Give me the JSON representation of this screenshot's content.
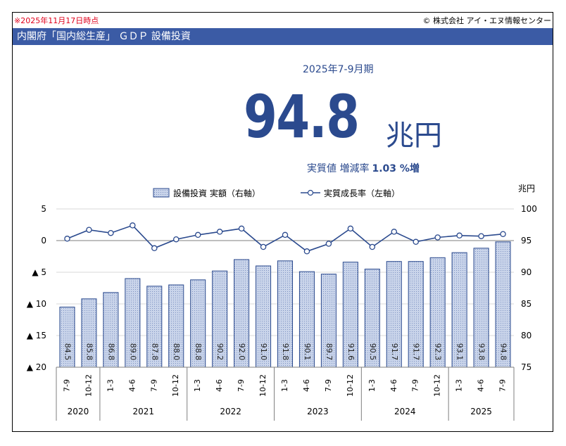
{
  "header": {
    "as_of": "※2025年11月17日時点",
    "copyright": "© 株式会社 アイ・エヌ情報センター",
    "title": "内閣府「国内総生産」 ＧＤＰ 設備投資"
  },
  "headline": {
    "period": "2025年7-9月期",
    "value": "94.8",
    "unit": "兆円",
    "growth_label": "実質値 増減率",
    "growth_value": "1.03 %増"
  },
  "colors": {
    "banner": "#3b5ba5",
    "text_blue": "#2b4a8e",
    "bar_fill": "#b8c6e0",
    "bar_stroke": "#2b4a8e",
    "line": "#2b4a8e",
    "as_of_red": "#e0001b"
  },
  "chart_data": {
    "type": "bar",
    "legend": {
      "bar": "設備投資 実額（右軸）",
      "line": "実質成長率（左軸）",
      "position": "top"
    },
    "right_axis_unit": "兆円",
    "categories": [
      "7-9",
      "10-12",
      "1-3",
      "4-6",
      "7-9",
      "10-12",
      "1-3",
      "4-6",
      "7-9",
      "10-12",
      "1-3",
      "4-6",
      "7-9",
      "10-12",
      "1-3",
      "4-6",
      "7-9",
      "10-12",
      "1-3",
      "4-6",
      "7-9"
    ],
    "years": [
      {
        "label": "2020",
        "count": 2
      },
      {
        "label": "2021",
        "count": 4
      },
      {
        "label": "2022",
        "count": 4
      },
      {
        "label": "2023",
        "count": 4
      },
      {
        "label": "2024",
        "count": 4
      },
      {
        "label": "2025",
        "count": 3
      }
    ],
    "series": [
      {
        "name": "設備投資 実額（右軸）",
        "axis": "right",
        "values": [
          84.5,
          85.8,
          86.8,
          89.0,
          87.8,
          88.0,
          88.8,
          90.2,
          92.0,
          91.0,
          91.8,
          90.1,
          89.7,
          91.6,
          90.5,
          91.7,
          91.7,
          92.3,
          93.1,
          93.8,
          94.8
        ],
        "labels": [
          "84.5",
          "85.8",
          "86.8",
          "89.0",
          "87.8",
          "88.0",
          "88.8",
          "90.2",
          "92.0",
          "91.0",
          "91.8",
          "90.1",
          "89.7",
          "91.6",
          "90.5",
          "91.7",
          "91.7",
          "92.3",
          "93.1",
          "93.8",
          "94.8"
        ]
      },
      {
        "name": "実質成長率（左軸）",
        "axis": "left",
        "values": [
          0.3,
          1.7,
          1.2,
          2.4,
          -1.2,
          0.2,
          0.9,
          1.4,
          1.9,
          -1.0,
          0.9,
          -1.7,
          -0.5,
          1.9,
          -1.0,
          1.4,
          -0.2,
          0.5,
          0.8,
          0.7,
          1.03
        ]
      }
    ],
    "left_axis": {
      "ylim": [
        -20,
        5
      ],
      "ticks": [
        5,
        0,
        -5,
        -10,
        -15,
        -20
      ],
      "tick_labels": [
        "5",
        "0",
        "▲ 5",
        "▲ 10",
        "▲ 15",
        "▲ 20"
      ]
    },
    "right_axis": {
      "ylim": [
        75,
        100
      ],
      "ticks": [
        100,
        95,
        90,
        85,
        80,
        75
      ],
      "tick_labels": [
        "100",
        "95",
        "90",
        "85",
        "80",
        "75"
      ]
    },
    "grid": true
  }
}
